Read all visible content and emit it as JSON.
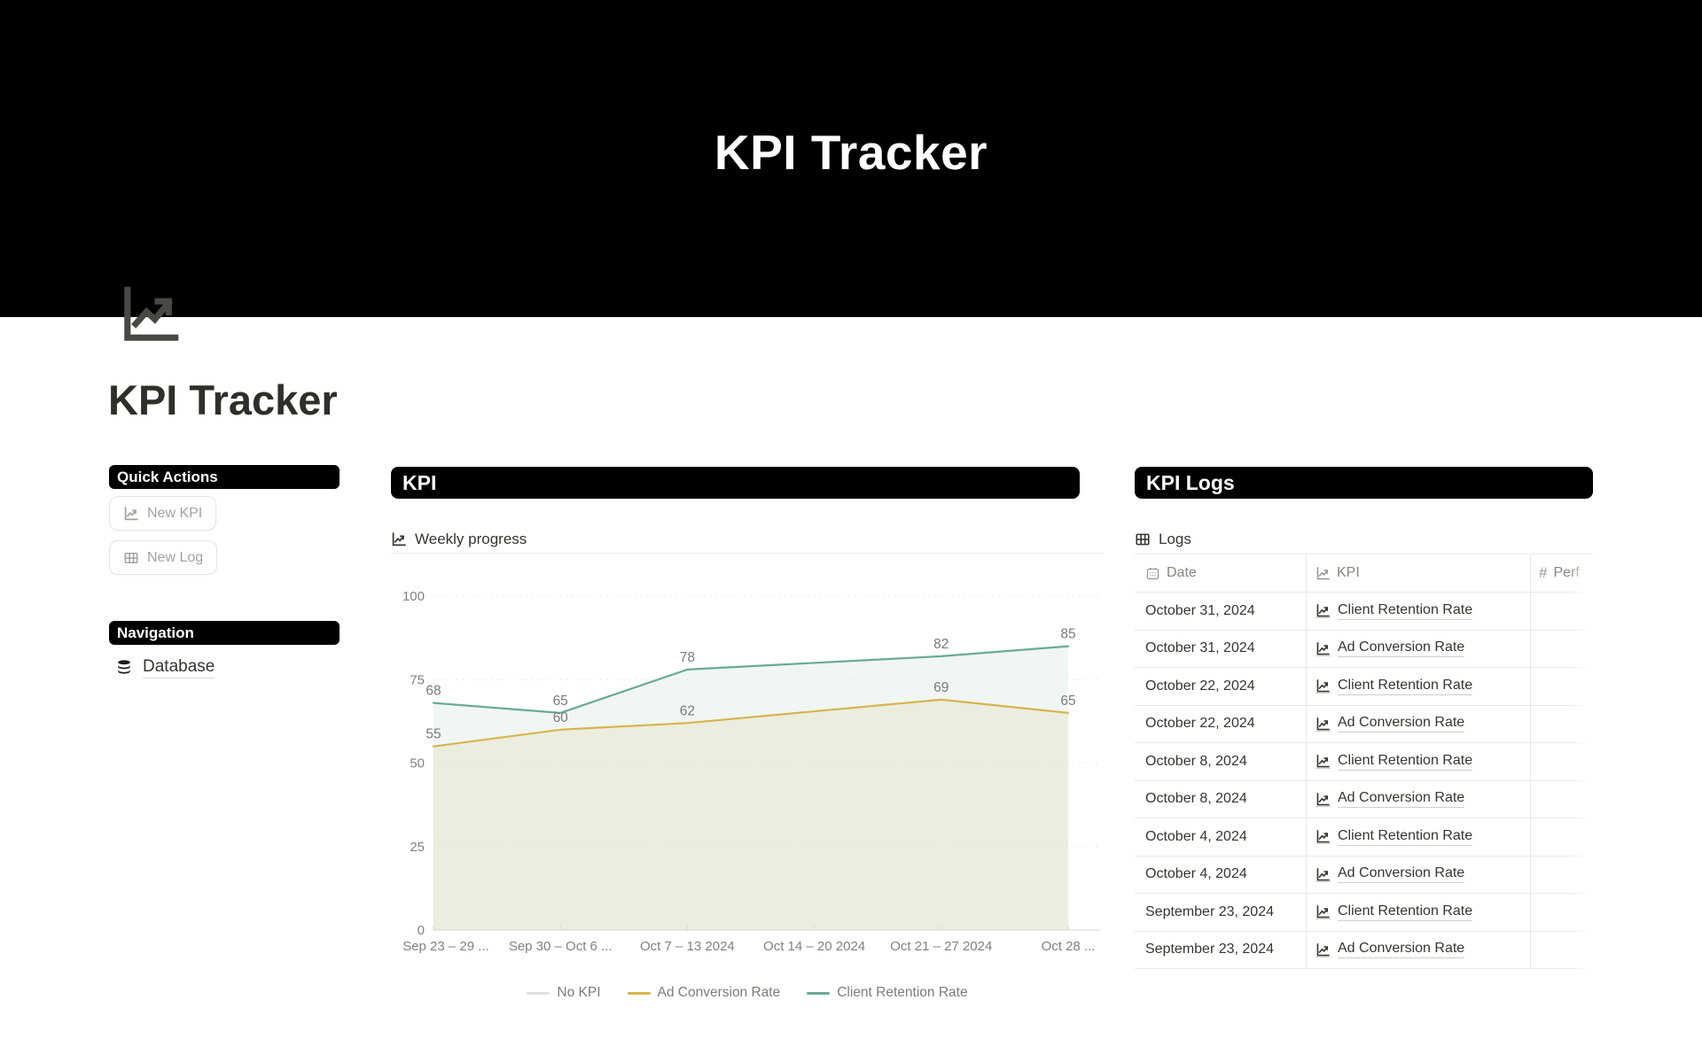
{
  "banner": {
    "title": "KPI Tracker"
  },
  "page": {
    "title": "KPI Tracker",
    "icon": "line-chart-icon"
  },
  "sidebar": {
    "quick_actions_header": "Quick Actions",
    "buttons": [
      {
        "label": "New KPI",
        "icon": "line-chart-icon"
      },
      {
        "label": "New Log",
        "icon": "table-icon"
      }
    ],
    "navigation_header": "Navigation",
    "nav_items": [
      {
        "label": "Database",
        "icon": "database-icon"
      }
    ]
  },
  "kpi_section": {
    "header": "KPI",
    "card_title": "Weekly progress",
    "card_icon": "line-chart-icon"
  },
  "chart_data": {
    "type": "area",
    "title": "Weekly progress",
    "categories": [
      "Sep 23 – 29 ...",
      "Sep 30 – Oct 6 ...",
      "Oct 7 – 13 2024",
      "Oct 14 – 20 2024",
      "Oct 21 – 27 2024",
      "Oct 28 ..."
    ],
    "series": [
      {
        "name": "No KPI",
        "color": "#e3e2df",
        "fill": "none",
        "values": [
          null,
          null,
          null,
          null,
          null,
          null
        ]
      },
      {
        "name": "Ad Conversion Rate",
        "color": "#d9b44e",
        "fill": "rgba(217,180,78,0.13)",
        "values": [
          55,
          60,
          62,
          null,
          69,
          65
        ]
      },
      {
        "name": "Client Retention Rate",
        "color": "#69aa94",
        "fill": "rgba(105,170,148,0.10)",
        "values": [
          68,
          65,
          78,
          null,
          82,
          85
        ]
      }
    ],
    "ylim": [
      0,
      100
    ],
    "yticks": [
      0,
      25,
      50,
      75,
      100
    ],
    "grid": "dotted-horizontal",
    "legend_position": "bottom"
  },
  "logs_section": {
    "header": "KPI Logs",
    "table_title": "Logs",
    "table_icon": "grid-icon",
    "columns": [
      {
        "label": "Date",
        "icon": "calendar-icon"
      },
      {
        "label": "KPI",
        "icon": "line-chart-icon"
      },
      {
        "label": "Perf",
        "icon": "hash-icon"
      }
    ],
    "rows": [
      {
        "date": "October 31, 2024",
        "kpi": "Client Retention Rate"
      },
      {
        "date": "October 31, 2024",
        "kpi": "Ad Conversion Rate"
      },
      {
        "date": "October 22, 2024",
        "kpi": "Client Retention Rate"
      },
      {
        "date": "October 22, 2024",
        "kpi": "Ad Conversion Rate"
      },
      {
        "date": "October 8, 2024",
        "kpi": "Client Retention Rate"
      },
      {
        "date": "October 8, 2024",
        "kpi": "Ad Conversion Rate"
      },
      {
        "date": "October 4, 2024",
        "kpi": "Client Retention Rate"
      },
      {
        "date": "October 4, 2024",
        "kpi": "Ad Conversion Rate"
      },
      {
        "date": "September 23, 2024",
        "kpi": "Client Retention Rate"
      },
      {
        "date": "September 23, 2024",
        "kpi": "Ad Conversion Rate"
      }
    ]
  },
  "colors": {
    "cover": "#000000",
    "accent_teal": "#69aa94",
    "accent_yellow": "#d9b44e",
    "muted_text": "#87867f",
    "table_border": "#e9e9e7"
  }
}
